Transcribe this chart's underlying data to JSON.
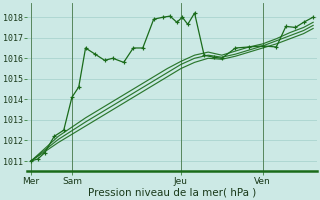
{
  "xlabel": "Pression niveau de la mer( hPa )",
  "bg_color": "#cce9e5",
  "grid_color": "#aad4cf",
  "line_color": "#1a6b1a",
  "vline_color": "#4a7a4a",
  "ylim": [
    1010.5,
    1018.7
  ],
  "yticks": [
    1011,
    1012,
    1013,
    1014,
    1015,
    1016,
    1017,
    1018
  ],
  "xlim": [
    -0.15,
    10.5
  ],
  "day_positions": [
    0.0,
    1.5,
    5.5,
    8.5
  ],
  "day_labels": [
    "Mer",
    "Sam",
    "Jeu",
    "Ven"
  ],
  "vlines": [
    0.0,
    1.5,
    5.5,
    8.5
  ],
  "main_x": [
    0.0,
    0.25,
    0.5,
    0.85,
    1.2,
    1.5,
    1.75,
    2.0,
    2.35,
    2.7,
    3.0,
    3.4,
    3.75,
    4.1,
    4.5,
    4.85,
    5.1,
    5.35,
    5.55,
    5.75,
    6.0,
    6.35,
    6.7,
    7.0,
    7.5,
    8.0,
    8.5,
    9.0,
    9.35,
    9.7,
    10.0,
    10.35
  ],
  "main_y": [
    1011.0,
    1011.1,
    1011.4,
    1012.2,
    1012.5,
    1014.1,
    1014.6,
    1016.5,
    1016.2,
    1015.9,
    1016.0,
    1015.8,
    1016.5,
    1016.5,
    1017.9,
    1018.0,
    1018.05,
    1017.75,
    1018.0,
    1017.65,
    1018.2,
    1016.15,
    1016.05,
    1016.0,
    1016.5,
    1016.55,
    1016.6,
    1016.55,
    1017.55,
    1017.5,
    1017.75,
    1018.0
  ],
  "smooth1_x": [
    0.0,
    1.0,
    2.0,
    3.0,
    4.0,
    5.0,
    5.5,
    6.0,
    6.5,
    7.0,
    7.5,
    8.0,
    8.5,
    9.0,
    9.5,
    10.0,
    10.35
  ],
  "smooth1_y": [
    1011.0,
    1011.9,
    1012.7,
    1013.5,
    1014.3,
    1015.1,
    1015.5,
    1015.8,
    1016.0,
    1015.95,
    1016.1,
    1016.3,
    1016.5,
    1016.7,
    1016.95,
    1017.2,
    1017.45
  ],
  "smooth2_x": [
    0.0,
    1.0,
    2.0,
    3.0,
    4.0,
    5.0,
    5.5,
    6.0,
    6.5,
    7.0,
    7.5,
    8.0,
    8.5,
    9.0,
    9.5,
    10.0,
    10.35
  ],
  "smooth2_y": [
    1011.0,
    1012.05,
    1012.9,
    1013.7,
    1014.5,
    1015.3,
    1015.7,
    1016.0,
    1016.15,
    1016.05,
    1016.2,
    1016.4,
    1016.6,
    1016.85,
    1017.1,
    1017.35,
    1017.6
  ],
  "smooth3_x": [
    0.0,
    1.0,
    2.0,
    3.0,
    4.0,
    5.0,
    5.5,
    6.0,
    6.5,
    7.0,
    7.5,
    8.0,
    8.5,
    9.0,
    9.5,
    10.0,
    10.35
  ],
  "smooth3_y": [
    1011.0,
    1012.2,
    1013.1,
    1013.9,
    1014.7,
    1015.5,
    1015.85,
    1016.15,
    1016.3,
    1016.15,
    1016.35,
    1016.55,
    1016.7,
    1016.95,
    1017.25,
    1017.5,
    1017.75
  ]
}
